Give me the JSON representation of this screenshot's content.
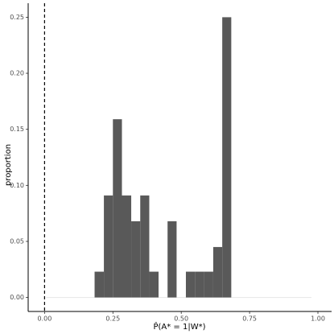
{
  "chart_data": {
    "type": "histogram",
    "x_label": "P̂(A* = 1|W*)",
    "y_label": "proportion",
    "bins": [
      0.183,
      0.217,
      0.25,
      0.283,
      0.317,
      0.35,
      0.383,
      0.417,
      0.45,
      0.483,
      0.517,
      0.55,
      0.583,
      0.617,
      0.65,
      0.683
    ],
    "values": [
      0.023,
      0.091,
      0.159,
      0.091,
      0.068,
      0.091,
      0.023,
      0,
      0.068,
      0,
      0.023,
      0.023,
      0.023,
      0.045,
      0.25
    ],
    "color": "#595959",
    "vline": 0,
    "xlim": [
      -0.06,
      1.05
    ],
    "ylim": [
      -0.0125,
      0.2625
    ],
    "xticks": [
      {
        "value": 0,
        "label": "0.00"
      },
      0.25,
      {
        "value": 0.5,
        "label": "0.50"
      },
      0.75,
      {
        "value": 1,
        "label": "1.00"
      }
    ],
    "yticks": [
      {
        "value": 0,
        "label": "0.00"
      },
      0.05,
      {
        "value": 0.1,
        "label": "0.10"
      },
      0.15,
      {
        "value": 0.2,
        "label": "0.20"
      },
      0.25
    ],
    "grid": false
  }
}
